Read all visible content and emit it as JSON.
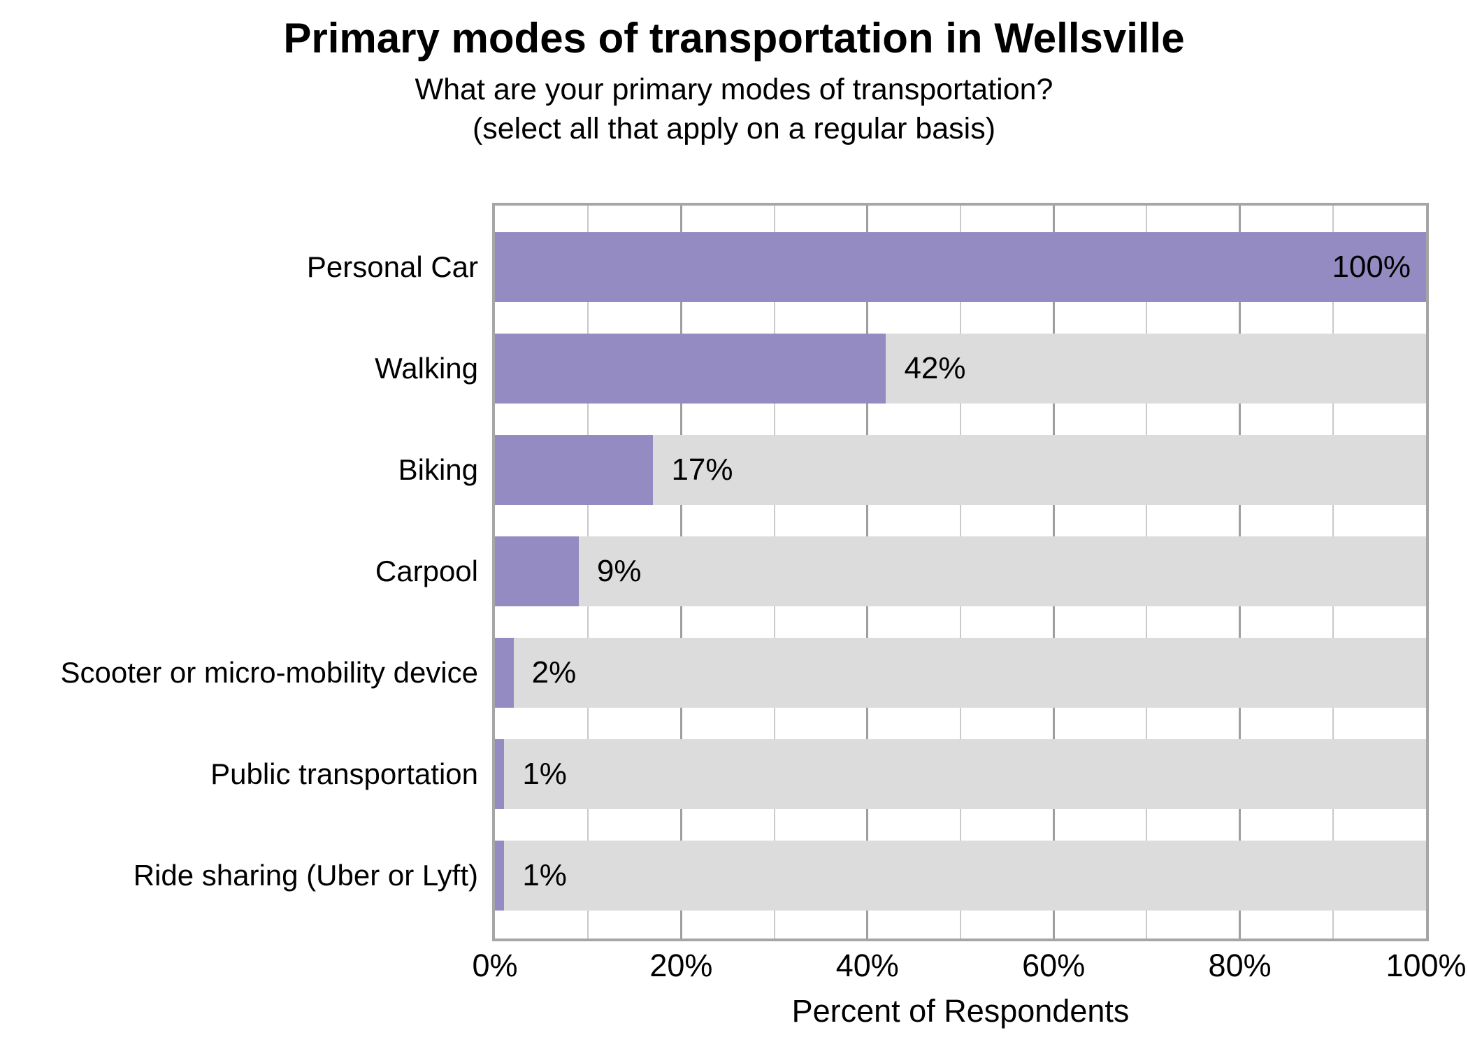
{
  "chart_data": {
    "type": "bar",
    "orientation": "horizontal",
    "title": "Primary modes of transportation in Wellsville",
    "subtitle_line1": "What are your primary modes of transportation?",
    "subtitle_line2": "(select all that apply on a regular basis)",
    "categories": [
      "Personal Car",
      "Walking",
      "Biking",
      "Carpool",
      "Scooter or micro-mobility device",
      "Public transportation",
      "Ride sharing (Uber or Lyft)"
    ],
    "values": [
      100,
      42,
      17,
      9,
      2,
      1,
      1
    ],
    "value_labels": [
      "100%",
      "42%",
      "17%",
      "9%",
      "2%",
      "1%",
      "1%"
    ],
    "xlabel": "Percent of Respondents",
    "x_ticks": [
      {
        "value": 0,
        "label": "0%"
      },
      {
        "value": 20,
        "label": "20%"
      },
      {
        "value": 40,
        "label": "40%"
      },
      {
        "value": 60,
        "label": "60%"
      },
      {
        "value": 80,
        "label": "80%"
      },
      {
        "value": 100,
        "label": "100%"
      }
    ],
    "xlim": [
      0,
      100
    ],
    "grid": {
      "minor_step": 10,
      "major_step": 20,
      "direction": "vertical"
    },
    "legend": "none",
    "colors": {
      "bar_fill": "#938bc2",
      "track_fill": "#dcdcdc",
      "grid_major": "#9e9e9e",
      "grid_minor": "#c9c9c9",
      "panel_border": "#a6a6a6",
      "text": "#000000",
      "background": "#ffffff"
    }
  }
}
